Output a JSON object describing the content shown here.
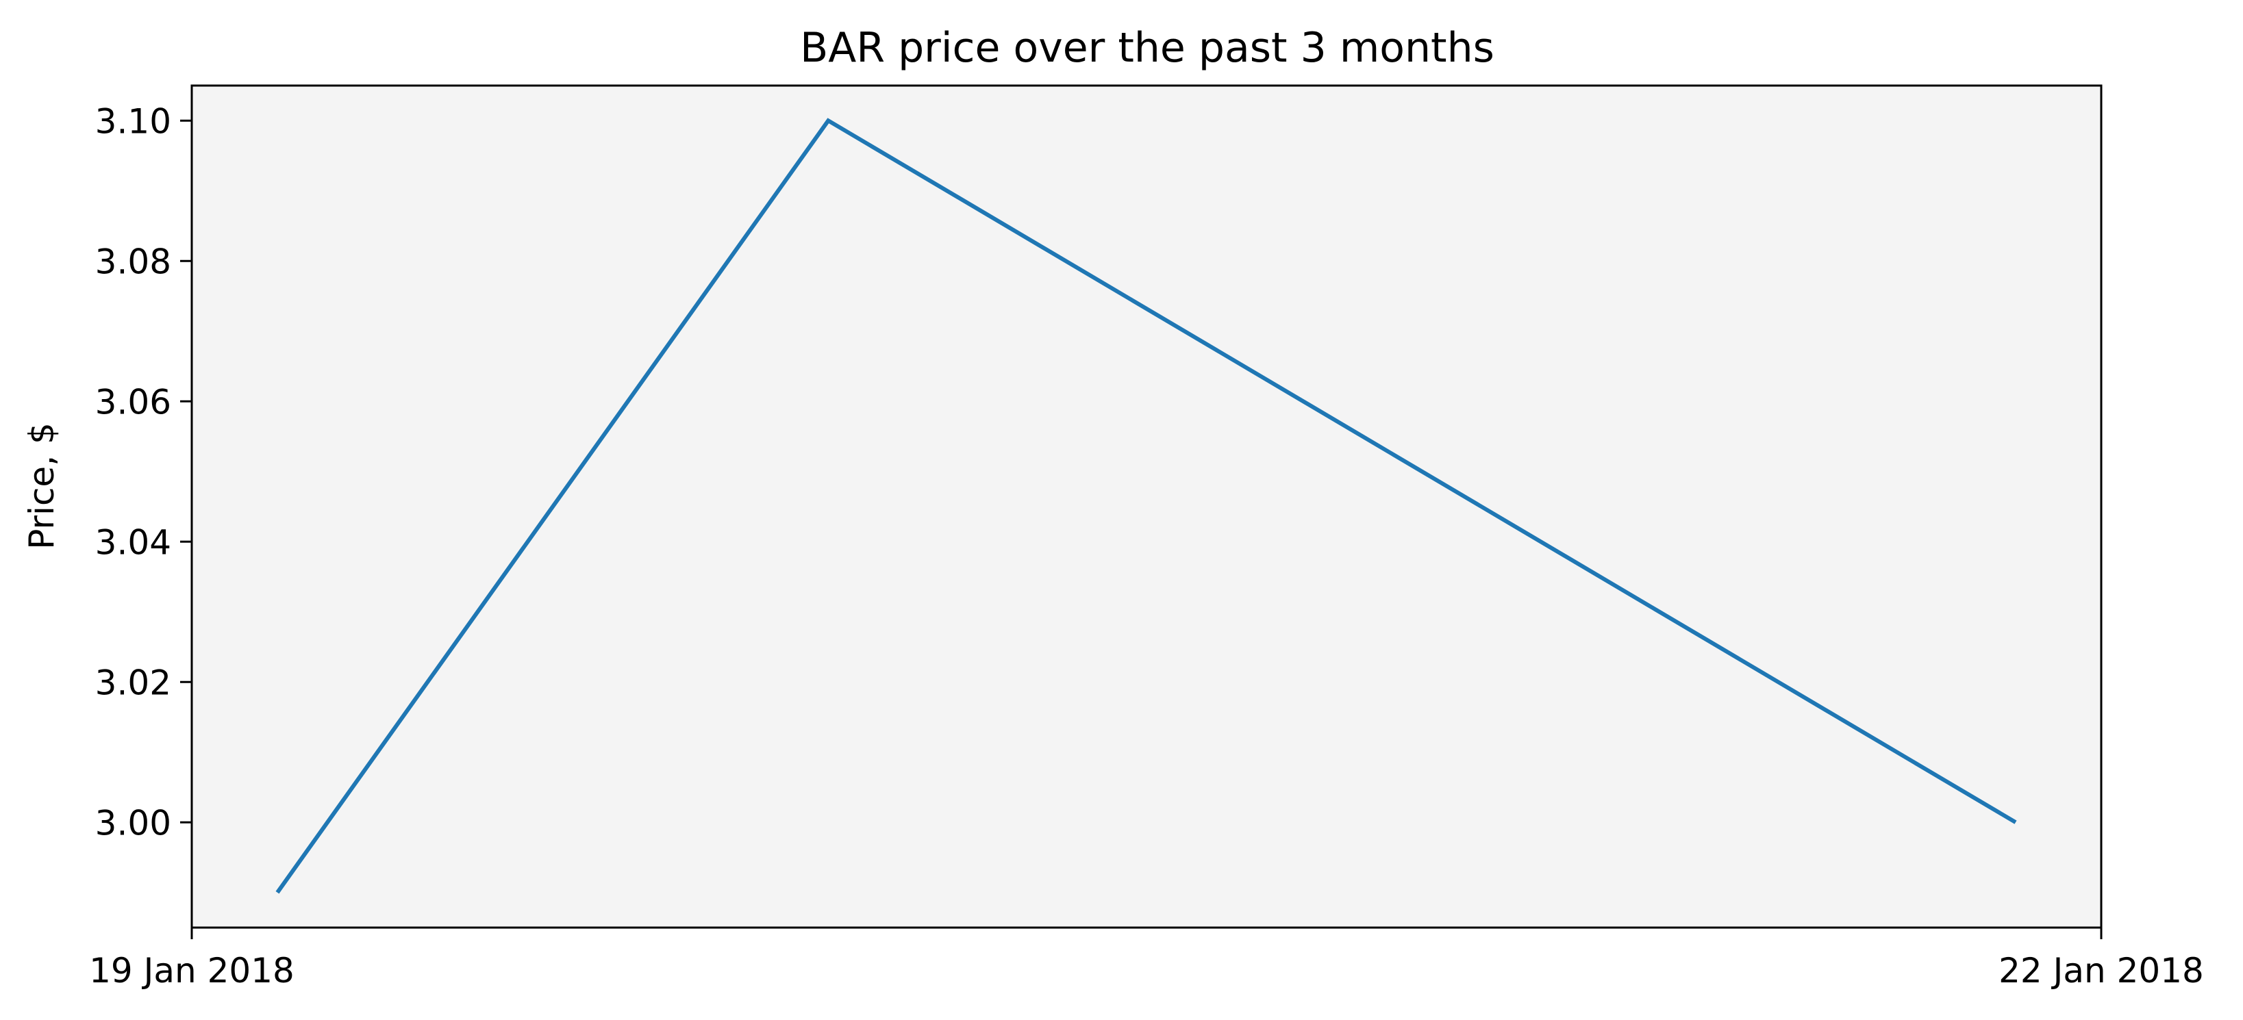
{
  "chart_data": {
    "type": "line",
    "title": "BAR price over the past 3 months",
    "xlabel": "",
    "ylabel": "Price, $",
    "x": [
      "2018-01-19",
      "2018-01-20",
      "2018-01-22"
    ],
    "series": [
      {
        "values": [
          2.99,
          3.1,
          3.0
        ]
      }
    ],
    "xlim": [
      "2018-01-19",
      "2018-01-22"
    ],
    "ylim": [
      2.985,
      3.105
    ],
    "x_ticks": [
      {
        "value": "2018-01-19",
        "label": "19 Jan 2018"
      },
      {
        "value": "2018-01-22",
        "label": "22 Jan 2018"
      }
    ],
    "y_ticks": [
      {
        "value": 3.0,
        "label": "3.00"
      },
      {
        "value": 3.02,
        "label": "3.02"
      },
      {
        "value": 3.04,
        "label": "3.04"
      },
      {
        "value": 3.06,
        "label": "3.06"
      },
      {
        "value": 3.08,
        "label": "3.08"
      },
      {
        "value": 3.1,
        "label": "3.10"
      }
    ],
    "grid": false,
    "legend": "none",
    "colors": {
      "line": "#1f77b4",
      "plot_background": "#f4f4f4",
      "axes": "#000000"
    }
  }
}
